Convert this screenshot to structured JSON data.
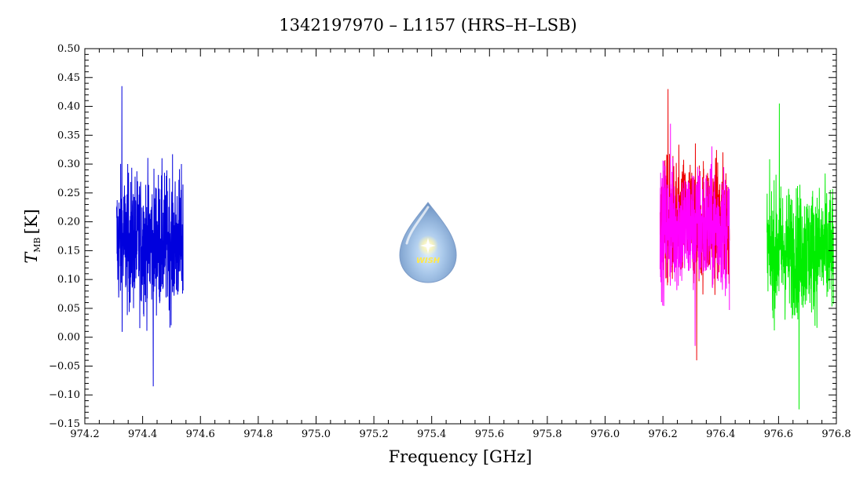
{
  "chart_data": {
    "type": "line",
    "title": "1342197970 – L1157 (HRS–H–LSB)",
    "xlabel": "Frequency [GHz]",
    "ylabel_main": "T",
    "ylabel_sub": "MB",
    "ylabel_unit": "[K]",
    "xlim": [
      974.2,
      976.8
    ],
    "ylim": [
      -0.15,
      0.5
    ],
    "x_ticks": [
      "974.2",
      "974.4",
      "974.6",
      "974.8",
      "975.0",
      "975.2",
      "975.4",
      "975.6",
      "975.8",
      "976.0",
      "976.2",
      "976.4",
      "976.6",
      "976.8"
    ],
    "y_ticks": [
      "−0.15",
      "−0.10",
      "−0.05",
      "0.00",
      "0.05",
      "0.10",
      "0.15",
      "0.20",
      "0.25",
      "0.30",
      "0.35",
      "0.40",
      "0.45",
      "0.50"
    ],
    "grid": false,
    "legend": "none",
    "logo": {
      "text": "WISH"
    },
    "series": [
      {
        "color": "#0000dd",
        "x_range": [
          974.31,
          974.54
        ],
        "mean": 0.165,
        "noise": 0.06,
        "spike_max": 0.435,
        "spike_min": -0.085
      },
      {
        "color": "#ee0000",
        "x_range": [
          976.19,
          976.43
        ],
        "mean": 0.2,
        "noise": 0.055,
        "spike_max": 0.43,
        "spike_min": -0.04
      },
      {
        "color": "#ff00ff",
        "x_range": [
          976.19,
          976.43
        ],
        "mean": 0.19,
        "noise": 0.055,
        "spike_max": 0.37,
        "spike_min": -0.015
      },
      {
        "color": "#00ee00",
        "x_range": [
          976.56,
          976.79
        ],
        "mean": 0.15,
        "noise": 0.055,
        "spike_max": 0.405,
        "spike_min": -0.125
      }
    ]
  }
}
